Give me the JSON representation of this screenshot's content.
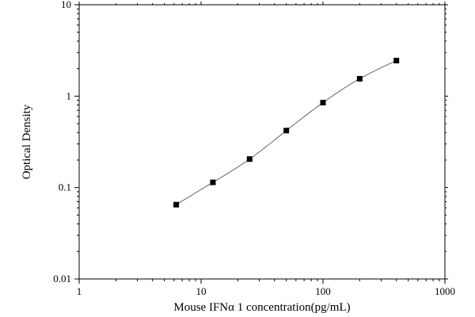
{
  "chart_data": {
    "type": "scatter",
    "xlabel": "Mouse IFNα 1 concentration(pg/mL)",
    "ylabel": "Optical Density",
    "x_scale": "log",
    "y_scale": "log",
    "xlim": [
      1,
      1000
    ],
    "ylim": [
      0.01,
      10
    ],
    "x_ticks": [
      "1",
      "10",
      "100",
      "1000"
    ],
    "y_ticks": [
      "0.01",
      "0.1",
      "1",
      "10"
    ],
    "grid": false,
    "legend": "none",
    "fit_curve": true,
    "marker": "square",
    "color": "#000000",
    "series": [
      {
        "x": [
          6.25,
          12.5,
          25,
          50,
          100,
          200,
          400
        ],
        "y": [
          0.065,
          0.114,
          0.205,
          0.42,
          0.85,
          1.55,
          2.45
        ]
      }
    ]
  }
}
